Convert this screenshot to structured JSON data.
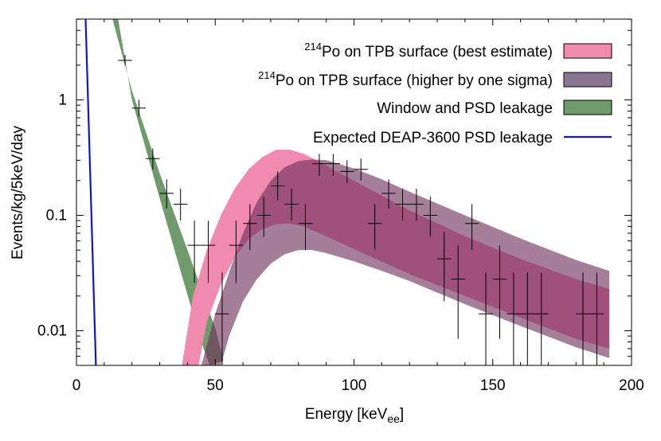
{
  "chart_data": {
    "type": "scatter",
    "xlabel": "Energy [keV",
    "xlabel_sub": "ee",
    "xlabel_end": "]",
    "ylabel": "Events/kg/5keV/day",
    "xlim": [
      0,
      200
    ],
    "ylim_log10": [
      -2.3,
      0.7
    ],
    "x_ticks": [
      0,
      50,
      100,
      150,
      200
    ],
    "y_ticks": [
      {
        "value": 1,
        "label": "1"
      },
      {
        "value": 0.1,
        "label": "0.1"
      },
      {
        "value": 0.01,
        "label": "0.01"
      }
    ],
    "colors": {
      "pink": "#f08aae",
      "purple": "#8a7592",
      "green": "#6f9a6b",
      "blue": "#1414c8",
      "overlap": "#6e2f5c"
    },
    "legend": [
      {
        "sup": "214",
        "text": "Po on TPB surface (best estimate)",
        "swatch": "pink"
      },
      {
        "sup": "214",
        "text": "Po on TPB surface (higher by one sigma)",
        "swatch": "purple"
      },
      {
        "sup": "",
        "text": "Window and PSD leakage",
        "swatch": "green"
      },
      {
        "sup": "",
        "text": "Expected DEAP-3600 PSD leakage",
        "swatch": "blue-line"
      }
    ],
    "series": {
      "window_psd_band": {
        "name": "Window and PSD leakage",
        "upper": [
          [
            13,
            5.0
          ],
          [
            20,
            1.2
          ],
          [
            30,
            0.23
          ],
          [
            40,
            0.05
          ],
          [
            50,
            0.0105
          ],
          [
            53,
            0.0055
          ]
        ],
        "lower": [
          [
            15,
            5.0
          ],
          [
            20,
            1.0
          ],
          [
            30,
            0.14
          ],
          [
            38,
            0.03
          ],
          [
            45,
            0.008
          ],
          [
            48,
            0.005
          ]
        ]
      },
      "po214_best": {
        "name": "214Po on TPB surface (best estimate)",
        "upper": [
          [
            38,
            0.005
          ],
          [
            42,
            0.02
          ],
          [
            47,
            0.05
          ],
          [
            52,
            0.1
          ],
          [
            57,
            0.17
          ],
          [
            62,
            0.25
          ],
          [
            67,
            0.32
          ],
          [
            72,
            0.37
          ],
          [
            77,
            0.37
          ],
          [
            82,
            0.34
          ],
          [
            90,
            0.27
          ],
          [
            100,
            0.2
          ],
          [
            120,
            0.11
          ],
          [
            140,
            0.066
          ],
          [
            160,
            0.042
          ],
          [
            180,
            0.028
          ],
          [
            192,
            0.023
          ]
        ],
        "lower": [
          [
            44,
            0.005
          ],
          [
            47,
            0.012
          ],
          [
            52,
            0.025
          ],
          [
            57,
            0.043
          ],
          [
            62,
            0.062
          ],
          [
            67,
            0.076
          ],
          [
            72,
            0.084
          ],
          [
            77,
            0.085
          ],
          [
            82,
            0.08
          ],
          [
            90,
            0.066
          ],
          [
            100,
            0.051
          ],
          [
            120,
            0.031
          ],
          [
            140,
            0.02
          ],
          [
            160,
            0.013
          ],
          [
            180,
            0.0085
          ],
          [
            192,
            0.007
          ]
        ]
      },
      "po214_high": {
        "name": "214Po on TPB surface (higher by one sigma)",
        "upper": [
          [
            45,
            0.005
          ],
          [
            50,
            0.014
          ],
          [
            55,
            0.032
          ],
          [
            60,
            0.07
          ],
          [
            65,
            0.13
          ],
          [
            70,
            0.2
          ],
          [
            75,
            0.26
          ],
          [
            80,
            0.295
          ],
          [
            85,
            0.305
          ],
          [
            90,
            0.3
          ],
          [
            100,
            0.255
          ],
          [
            110,
            0.205
          ],
          [
            120,
            0.16
          ],
          [
            140,
            0.1
          ],
          [
            160,
            0.063
          ],
          [
            180,
            0.041
          ],
          [
            192,
            0.033
          ]
        ],
        "lower": [
          [
            52,
            0.005
          ],
          [
            55,
            0.009
          ],
          [
            60,
            0.018
          ],
          [
            65,
            0.028
          ],
          [
            70,
            0.038
          ],
          [
            75,
            0.046
          ],
          [
            80,
            0.05
          ],
          [
            85,
            0.05
          ],
          [
            90,
            0.047
          ],
          [
            100,
            0.04
          ],
          [
            110,
            0.033
          ],
          [
            120,
            0.027
          ],
          [
            140,
            0.017
          ],
          [
            160,
            0.011
          ],
          [
            180,
            0.0072
          ],
          [
            192,
            0.0058
          ]
        ]
      },
      "deap_psd_line": {
        "name": "Expected DEAP-3600 PSD leakage",
        "points": [
          [
            3.3,
            5.0
          ],
          [
            7,
            0.005
          ]
        ]
      },
      "data_points": [
        {
          "x": 17.5,
          "y": 2.2,
          "lo": 2.0,
          "hi": 2.45
        },
        {
          "x": 22.5,
          "y": 0.85,
          "lo": 0.72,
          "hi": 1.0
        },
        {
          "x": 27.5,
          "y": 0.31,
          "lo": 0.25,
          "hi": 0.38
        },
        {
          "x": 32.5,
          "y": 0.155,
          "lo": 0.115,
          "hi": 0.205
        },
        {
          "x": 37.5,
          "y": 0.125,
          "lo": 0.09,
          "hi": 0.17
        },
        {
          "x": 42.5,
          "y": 0.055,
          "lo": 0.026,
          "hi": 0.09
        },
        {
          "x": 47.5,
          "y": 0.055,
          "lo": 0.026,
          "hi": 0.09
        },
        {
          "x": 52.5,
          "y": 0.014,
          "lo": 0.005,
          "hi": 0.032
        },
        {
          "x": 57.5,
          "y": 0.055,
          "lo": 0.026,
          "hi": 0.09
        },
        {
          "x": 62.5,
          "y": 0.085,
          "lo": 0.05,
          "hi": 0.125
        },
        {
          "x": 67.5,
          "y": 0.1,
          "lo": 0.065,
          "hi": 0.145
        },
        {
          "x": 72.5,
          "y": 0.18,
          "lo": 0.135,
          "hi": 0.24
        },
        {
          "x": 77.5,
          "y": 0.125,
          "lo": 0.09,
          "hi": 0.17
        },
        {
          "x": 82.5,
          "y": 0.085,
          "lo": 0.05,
          "hi": 0.125
        },
        {
          "x": 87.5,
          "y": 0.28,
          "lo": 0.22,
          "hi": 0.34
        },
        {
          "x": 92.5,
          "y": 0.28,
          "lo": 0.22,
          "hi": 0.34
        },
        {
          "x": 97.5,
          "y": 0.24,
          "lo": 0.19,
          "hi": 0.3
        },
        {
          "x": 102.5,
          "y": 0.25,
          "lo": 0.2,
          "hi": 0.31
        },
        {
          "x": 107.5,
          "y": 0.085,
          "lo": 0.05,
          "hi": 0.125
        },
        {
          "x": 112.5,
          "y": 0.155,
          "lo": 0.115,
          "hi": 0.205
        },
        {
          "x": 117.5,
          "y": 0.125,
          "lo": 0.09,
          "hi": 0.17
        },
        {
          "x": 122.5,
          "y": 0.125,
          "lo": 0.09,
          "hi": 0.17
        },
        {
          "x": 127.5,
          "y": 0.1,
          "lo": 0.065,
          "hi": 0.145
        },
        {
          "x": 132.5,
          "y": 0.042,
          "lo": 0.018,
          "hi": 0.072
        },
        {
          "x": 137.5,
          "y": 0.028,
          "lo": 0.0085,
          "hi": 0.055
        },
        {
          "x": 142.5,
          "y": 0.085,
          "lo": 0.05,
          "hi": 0.125
        },
        {
          "x": 147.5,
          "y": 0.014,
          "lo": 0.005,
          "hi": 0.032
        },
        {
          "x": 152.5,
          "y": 0.028,
          "lo": 0.0085,
          "hi": 0.055
        },
        {
          "x": 157.5,
          "y": 0.014,
          "lo": 0.005,
          "hi": 0.032
        },
        {
          "x": 162.5,
          "y": 0.014,
          "lo": 0.005,
          "hi": 0.032
        },
        {
          "x": 167.5,
          "y": 0.014,
          "lo": 0.005,
          "hi": 0.032
        },
        {
          "x": 182.5,
          "y": 0.014,
          "lo": 0.005,
          "hi": 0.032
        },
        {
          "x": 187.5,
          "y": 0.014,
          "lo": 0.005,
          "hi": 0.032
        }
      ]
    }
  }
}
